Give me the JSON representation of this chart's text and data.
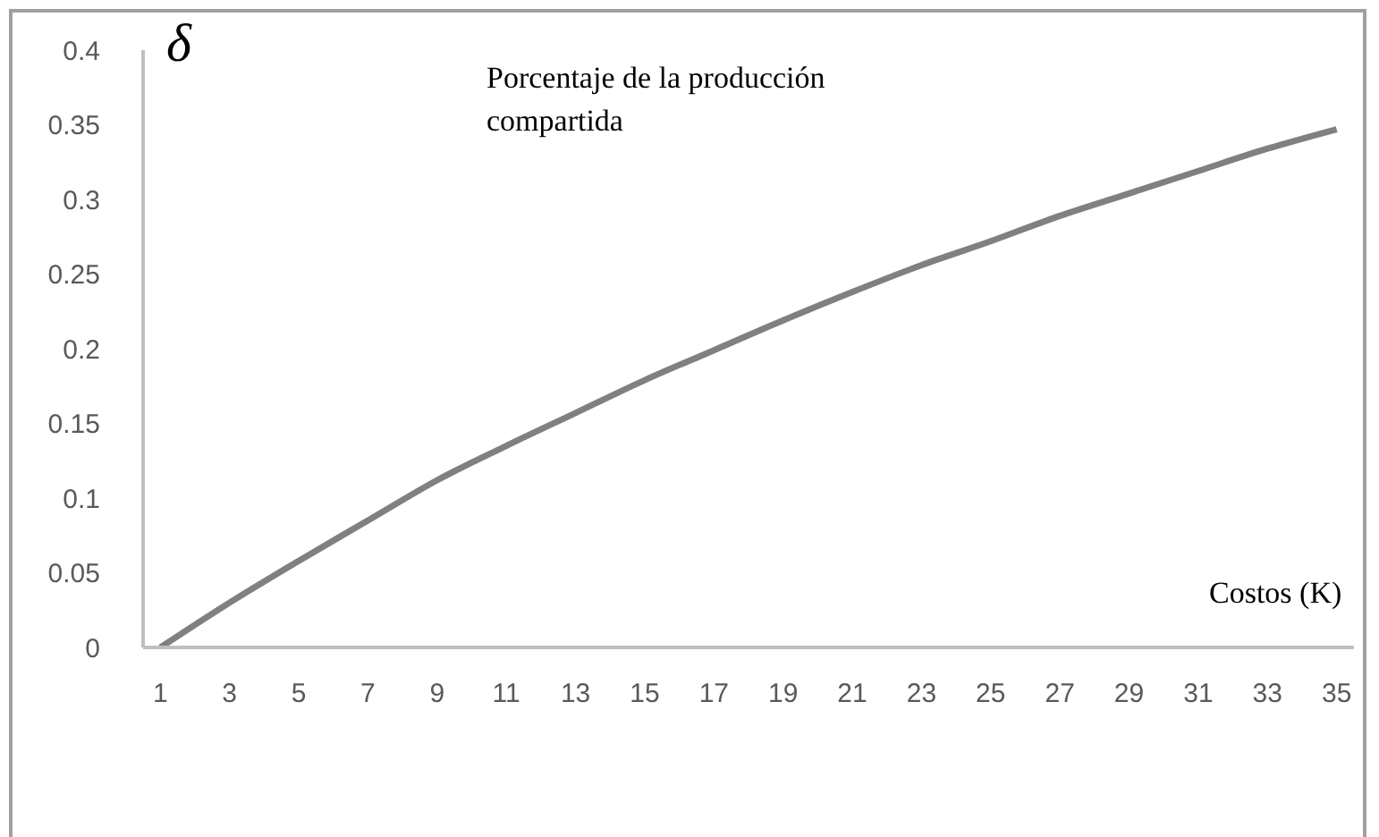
{
  "chart_data": {
    "type": "line",
    "ylabel": "δ",
    "xlabel": "Costos (K)",
    "annotations": [
      "Porcentaje de la producción compartida"
    ],
    "x": [
      1,
      3,
      5,
      7,
      9,
      11,
      13,
      15,
      17,
      19,
      21,
      23,
      25,
      27,
      29,
      31,
      33,
      35
    ],
    "series": [
      {
        "color": "#808080",
        "values": [
          0,
          0.03,
          0.058,
          0.085,
          0.112,
          0.135,
          0.157,
          0.179,
          0.199,
          0.219,
          0.238,
          0.256,
          0.272,
          0.289,
          0.304,
          0.319,
          0.334,
          0.347
        ]
      }
    ],
    "xlim": [
      0.5,
      35.5
    ],
    "xticks": [
      1,
      3,
      5,
      7,
      9,
      11,
      13,
      15,
      17,
      19,
      21,
      23,
      25,
      27,
      29,
      31,
      33,
      35
    ],
    "ylim": [
      0,
      0.4
    ],
    "yticks": [
      0,
      0.05,
      0.1,
      0.15,
      0.2,
      0.25,
      0.3,
      0.35,
      0.4
    ],
    "grid": false,
    "legend": false,
    "marker": "none",
    "line_style": "solid"
  }
}
